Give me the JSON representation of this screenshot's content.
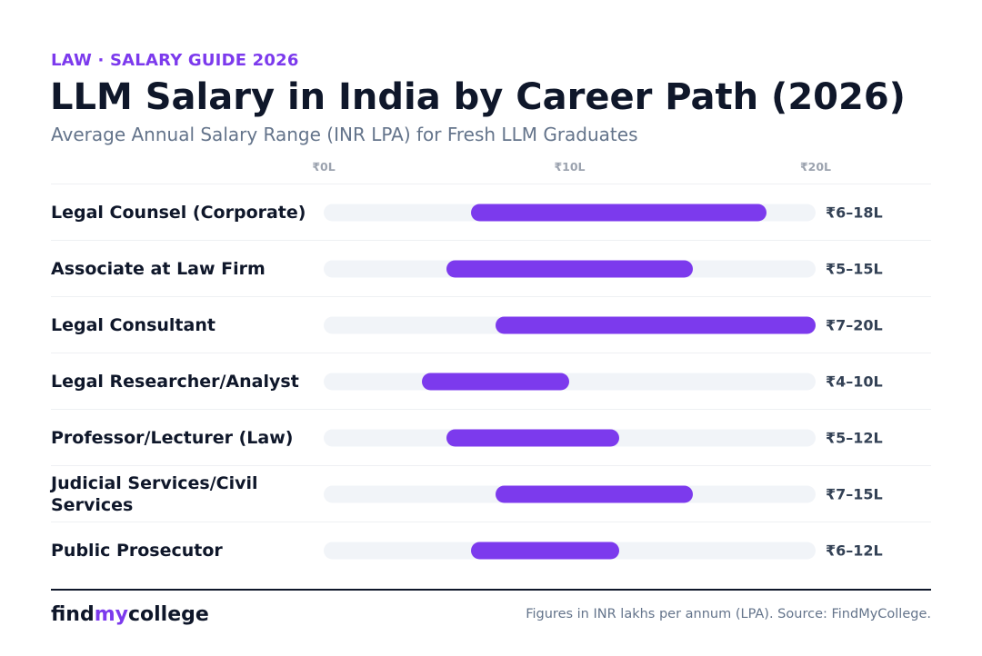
{
  "header": {
    "eyebrow": "LAW · SALARY GUIDE 2026",
    "title": "LLM Salary in India by Career Path (2026)",
    "subtitle": "Average Annual Salary Range (INR LPA) for Fresh LLM Graduates"
  },
  "chart_data": {
    "type": "bar",
    "orientation": "horizontal-range",
    "unit": "INR LPA",
    "xlim": [
      0,
      20
    ],
    "ticks": [
      {
        "value": 0,
        "label": "₹0L"
      },
      {
        "value": 10,
        "label": "₹10L"
      },
      {
        "value": 20,
        "label": "₹20L"
      }
    ],
    "categories": [
      "Legal Counsel (Corporate)",
      "Associate at Law Firm",
      "Legal Consultant",
      "Legal Researcher/Analyst",
      "Professor/Lecturer (Law)",
      "Judicial Services/Civil Services",
      "Public Prosecutor"
    ],
    "ranges": [
      {
        "min": 6,
        "max": 18,
        "label": "₹6–18L"
      },
      {
        "min": 5,
        "max": 15,
        "label": "₹5–15L"
      },
      {
        "min": 7,
        "max": 20,
        "label": "₹7–20L"
      },
      {
        "min": 4,
        "max": 10,
        "label": "₹4–10L"
      },
      {
        "min": 5,
        "max": 12,
        "label": "₹5–12L"
      },
      {
        "min": 7,
        "max": 15,
        "label": "₹7–15L"
      },
      {
        "min": 6,
        "max": 12,
        "label": "₹6–12L"
      }
    ],
    "colors": {
      "bar": "#7c3aed",
      "track": "#f1f4f8"
    }
  },
  "footer": {
    "logo_part1": "find",
    "logo_part2": "my",
    "logo_part3": "college",
    "note": "Figures in INR lakhs per annum (LPA). Source: FindMyCollege."
  }
}
